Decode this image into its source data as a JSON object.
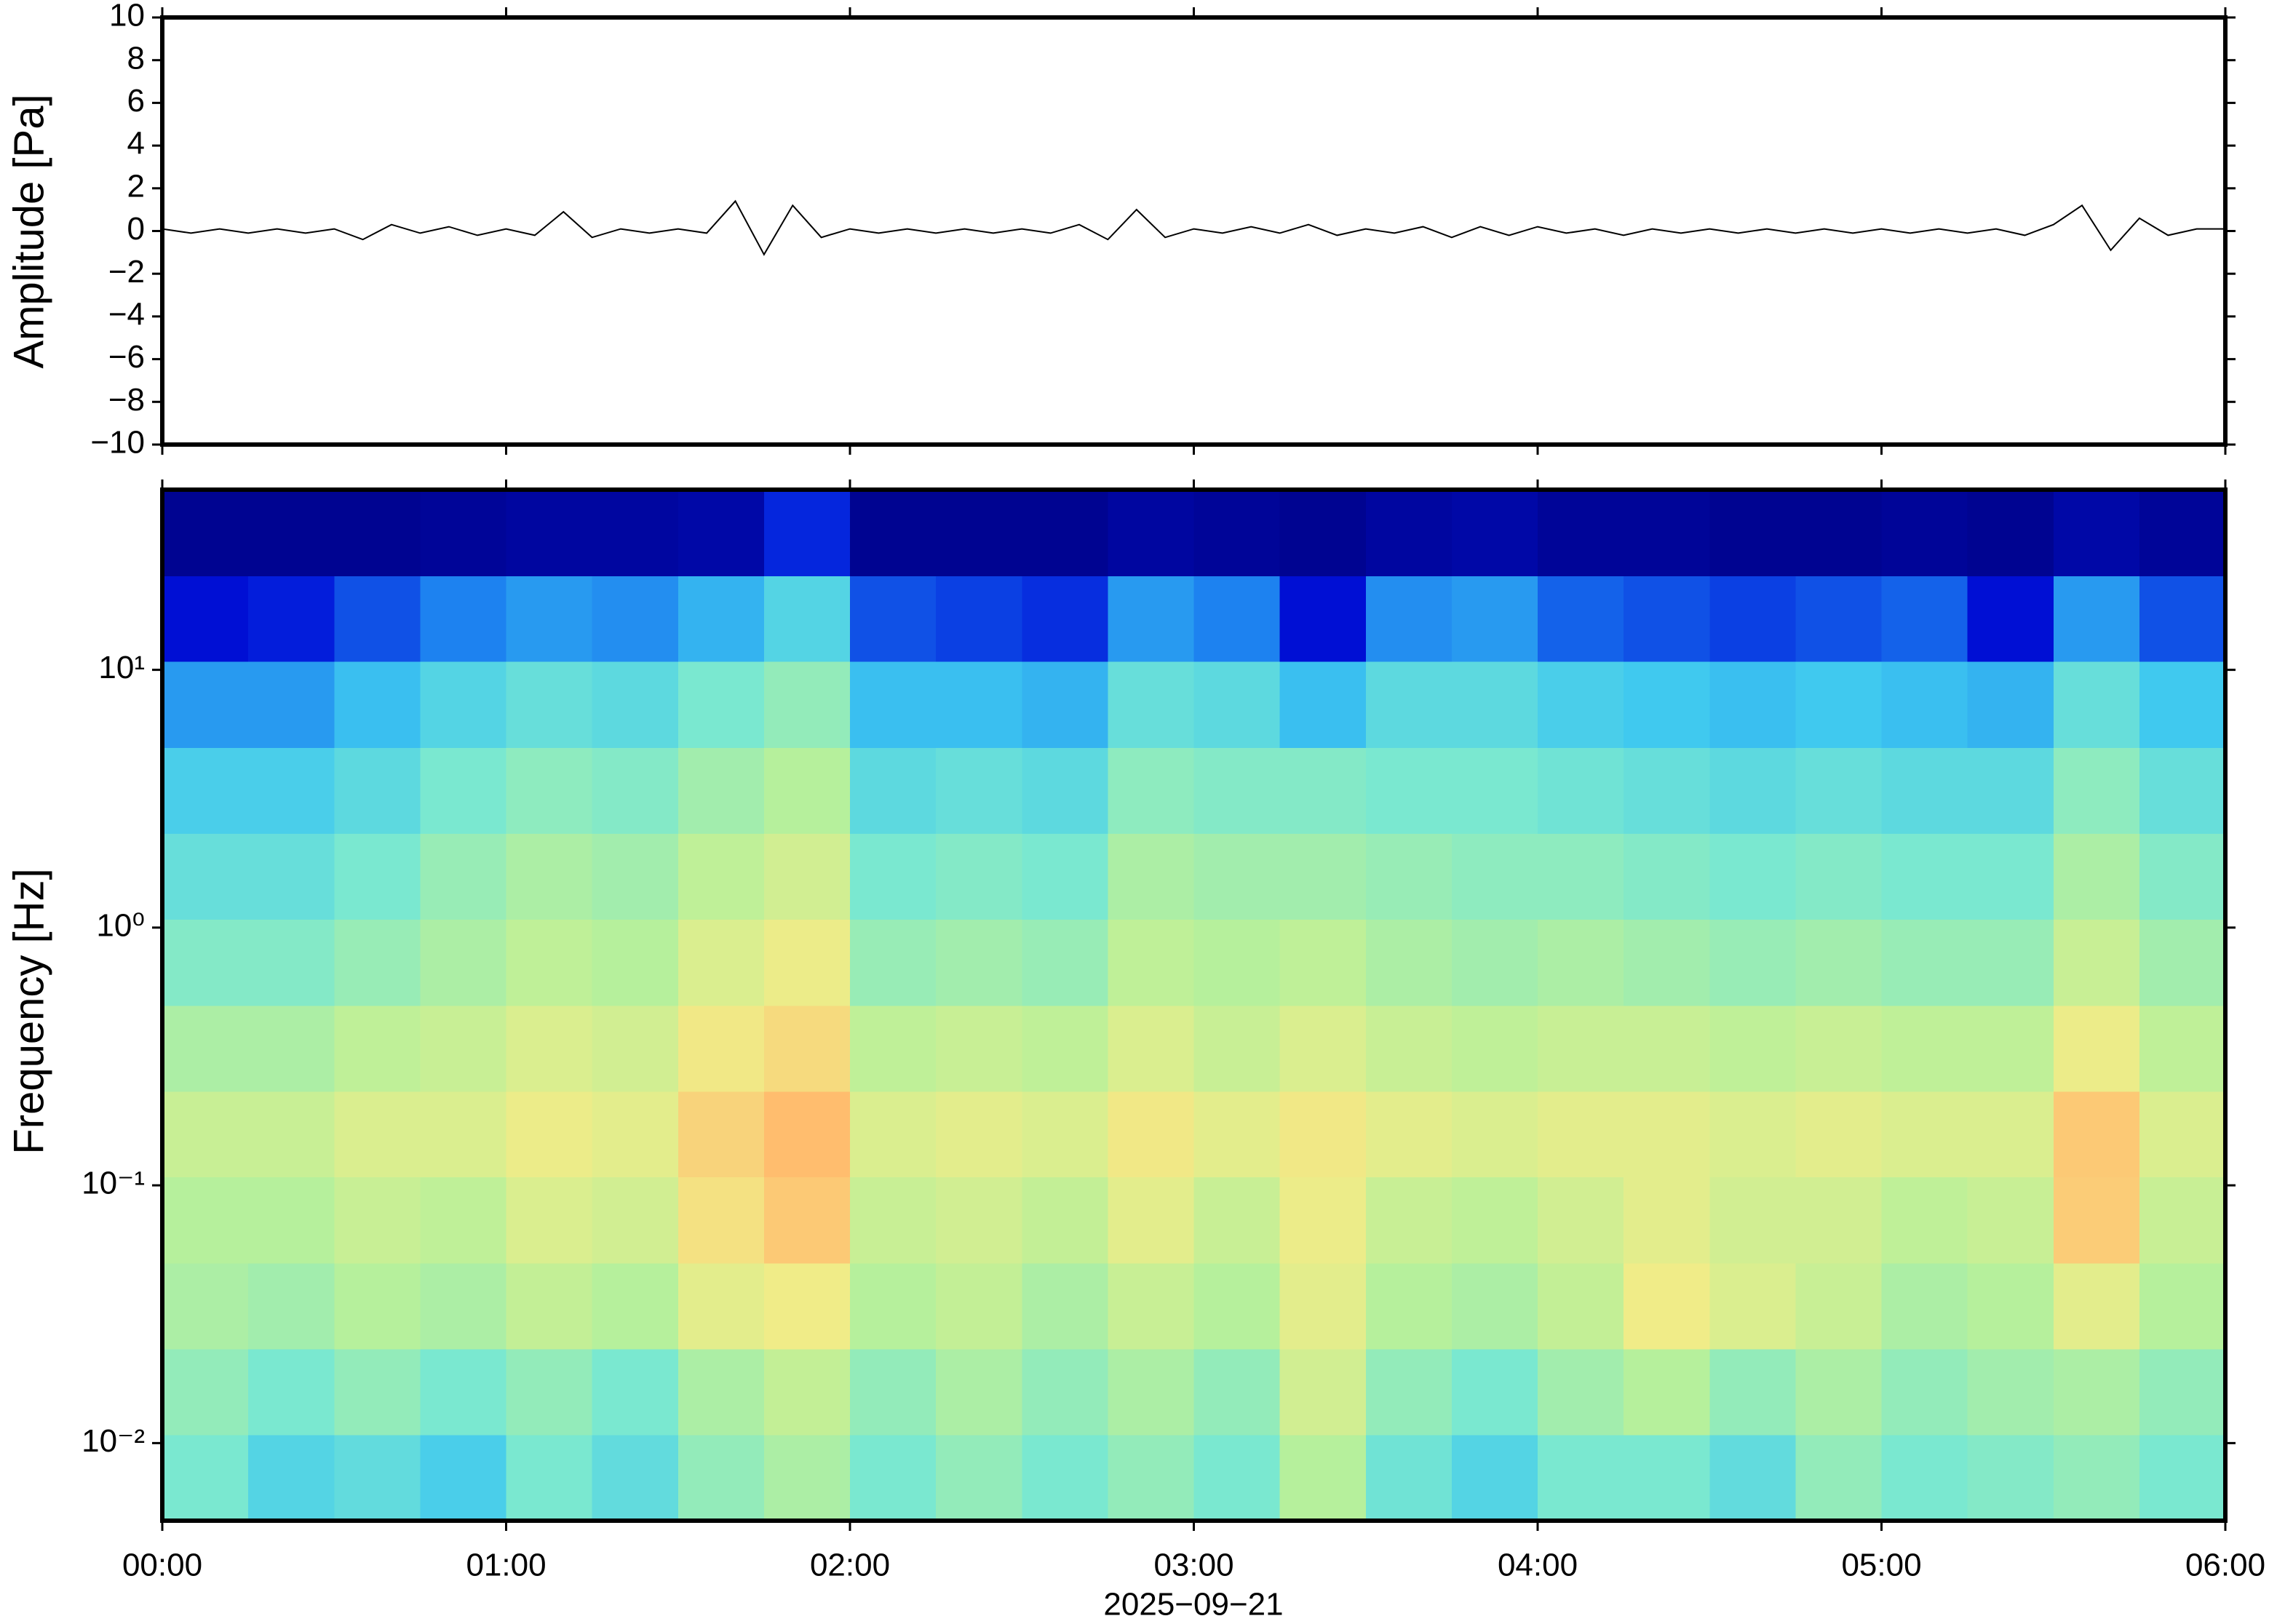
{
  "chart_data": [
    {
      "type": "line",
      "ylabel": "Amplitude [Pa]",
      "color": "#000000",
      "x": [
        "00:00",
        "00:05",
        "00:10",
        "00:15",
        "00:20",
        "00:25",
        "00:30",
        "00:35",
        "00:40",
        "00:45",
        "00:50",
        "00:55",
        "01:00",
        "01:05",
        "01:10",
        "01:15",
        "01:20",
        "01:25",
        "01:30",
        "01:35",
        "01:40",
        "01:45",
        "01:50",
        "01:55",
        "02:00",
        "02:05",
        "02:10",
        "02:15",
        "02:20",
        "02:25",
        "02:30",
        "02:35",
        "02:40",
        "02:45",
        "02:50",
        "02:55",
        "03:00",
        "03:05",
        "03:10",
        "03:15",
        "03:20",
        "03:25",
        "03:30",
        "03:35",
        "03:40",
        "03:45",
        "03:50",
        "03:55",
        "04:00",
        "04:05",
        "04:10",
        "04:15",
        "04:20",
        "04:25",
        "04:30",
        "04:35",
        "04:40",
        "04:45",
        "04:50",
        "04:55",
        "05:00",
        "05:05",
        "05:10",
        "05:15",
        "05:20",
        "05:25",
        "05:30",
        "05:35",
        "05:40",
        "05:45",
        "05:50",
        "05:55",
        "06:00"
      ],
      "values": [
        0.1,
        -0.1,
        0.1,
        -0.1,
        0.1,
        -0.1,
        0.1,
        -0.4,
        0.3,
        -0.1,
        0.2,
        -0.2,
        0.1,
        -0.2,
        0.9,
        -0.3,
        0.1,
        -0.1,
        0.1,
        -0.1,
        1.4,
        -1.1,
        1.2,
        -0.3,
        0.1,
        -0.1,
        0.1,
        -0.1,
        0.1,
        -0.1,
        0.1,
        -0.1,
        0.3,
        -0.4,
        1.0,
        -0.3,
        0.1,
        -0.1,
        0.2,
        -0.1,
        0.3,
        -0.2,
        0.1,
        -0.1,
        0.2,
        -0.3,
        0.2,
        -0.2,
        0.2,
        -0.1,
        0.1,
        -0.2,
        0.1,
        -0.1,
        0.1,
        -0.1,
        0.1,
        -0.1,
        0.1,
        -0.1,
        0.1,
        -0.1,
        0.1,
        -0.1,
        0.1,
        -0.2,
        0.3,
        1.2,
        -0.9,
        0.6,
        -0.2,
        0.1,
        0.1
      ],
      "xlim": [
        "00:00",
        "06:00"
      ],
      "ylim": [
        -10,
        10
      ],
      "yticks": [
        {
          "value": -10,
          "label": "−10"
        },
        {
          "value": -8,
          "label": "−8"
        },
        {
          "value": -6,
          "label": "−6"
        },
        {
          "value": -4,
          "label": "−4"
        },
        {
          "value": -2,
          "label": "−2"
        },
        0,
        2,
        4,
        6,
        8,
        10
      ]
    },
    {
      "type": "heatmap",
      "ylabel": "Frequency [Hz]",
      "xlabel": "2025−09−21",
      "yscale": "log",
      "x_bins": [
        "00:00",
        "00:15",
        "00:30",
        "00:45",
        "01:00",
        "01:15",
        "01:30",
        "01:45",
        "02:00",
        "02:15",
        "02:30",
        "02:45",
        "03:00",
        "03:15",
        "03:30",
        "03:45",
        "04:00",
        "04:15",
        "04:30",
        "04:45",
        "05:00",
        "05:15",
        "05:30",
        "05:45",
        "06:00"
      ],
      "y_bins": [
        0.005,
        0.0108,
        0.0232,
        0.05,
        0.108,
        0.232,
        0.5,
        1.08,
        2.32,
        5,
        10.8,
        23.2,
        50
      ],
      "z": [
        [
          0.5,
          0.42,
          0.45,
          0.4,
          0.5,
          0.45,
          0.55,
          0.6,
          0.5,
          0.55,
          0.5,
          0.55,
          0.5,
          0.62,
          0.48,
          0.42,
          0.5,
          0.5,
          0.45,
          0.55,
          0.5,
          0.52,
          0.55,
          0.5
        ],
        [
          0.55,
          0.5,
          0.55,
          0.5,
          0.55,
          0.5,
          0.6,
          0.65,
          0.55,
          0.6,
          0.55,
          0.6,
          0.55,
          0.68,
          0.55,
          0.5,
          0.58,
          0.62,
          0.55,
          0.6,
          0.55,
          0.58,
          0.6,
          0.55
        ],
        [
          0.6,
          0.58,
          0.62,
          0.6,
          0.65,
          0.62,
          0.72,
          0.75,
          0.62,
          0.65,
          0.6,
          0.66,
          0.62,
          0.72,
          0.62,
          0.6,
          0.65,
          0.75,
          0.7,
          0.66,
          0.6,
          0.62,
          0.72,
          0.62
        ],
        [
          0.62,
          0.62,
          0.66,
          0.64,
          0.7,
          0.68,
          0.78,
          0.85,
          0.66,
          0.68,
          0.65,
          0.72,
          0.66,
          0.74,
          0.66,
          0.64,
          0.68,
          0.72,
          0.68,
          0.68,
          0.64,
          0.66,
          0.84,
          0.66
        ],
        [
          0.66,
          0.66,
          0.7,
          0.7,
          0.74,
          0.72,
          0.82,
          0.88,
          0.7,
          0.72,
          0.7,
          0.76,
          0.72,
          0.76,
          0.72,
          0.7,
          0.72,
          0.72,
          0.7,
          0.72,
          0.7,
          0.7,
          0.85,
          0.7
        ],
        [
          0.6,
          0.6,
          0.64,
          0.66,
          0.7,
          0.68,
          0.76,
          0.8,
          0.64,
          0.66,
          0.64,
          0.7,
          0.66,
          0.7,
          0.66,
          0.64,
          0.66,
          0.66,
          0.64,
          0.66,
          0.64,
          0.64,
          0.74,
          0.64
        ],
        [
          0.52,
          0.52,
          0.56,
          0.6,
          0.64,
          0.62,
          0.7,
          0.74,
          0.56,
          0.58,
          0.56,
          0.64,
          0.62,
          0.64,
          0.6,
          0.58,
          0.6,
          0.58,
          0.56,
          0.58,
          0.56,
          0.56,
          0.66,
          0.58
        ],
        [
          0.46,
          0.46,
          0.5,
          0.56,
          0.6,
          0.58,
          0.64,
          0.68,
          0.5,
          0.52,
          0.5,
          0.6,
          0.58,
          0.58,
          0.56,
          0.54,
          0.54,
          0.52,
          0.5,
          0.52,
          0.5,
          0.5,
          0.6,
          0.52
        ],
        [
          0.4,
          0.4,
          0.44,
          0.5,
          0.54,
          0.52,
          0.58,
          0.62,
          0.44,
          0.46,
          0.44,
          0.54,
          0.52,
          0.52,
          0.5,
          0.5,
          0.48,
          0.46,
          0.44,
          0.46,
          0.44,
          0.44,
          0.54,
          0.46
        ],
        [
          0.3,
          0.3,
          0.36,
          0.42,
          0.46,
          0.44,
          0.5,
          0.55,
          0.36,
          0.36,
          0.34,
          0.46,
          0.44,
          0.36,
          0.44,
          0.44,
          0.4,
          0.38,
          0.36,
          0.38,
          0.36,
          0.34,
          0.46,
          0.38
        ],
        [
          0.12,
          0.14,
          0.2,
          0.26,
          0.3,
          0.28,
          0.34,
          0.42,
          0.2,
          0.18,
          0.16,
          0.3,
          0.26,
          0.12,
          0.28,
          0.3,
          0.22,
          0.2,
          0.18,
          0.2,
          0.22,
          0.12,
          0.3,
          0.2
        ],
        [
          0.03,
          0.03,
          0.03,
          0.04,
          0.05,
          0.05,
          0.06,
          0.15,
          0.03,
          0.03,
          0.03,
          0.05,
          0.04,
          0.03,
          0.05,
          0.06,
          0.04,
          0.04,
          0.03,
          0.03,
          0.04,
          0.03,
          0.06,
          0.04
        ]
      ],
      "zlim": [
        0,
        1
      ],
      "colormap": [
        "#00007a",
        "#0010d8",
        "#1a7cf0",
        "#3ec8f0",
        "#7ae8d0",
        "#b8f09a",
        "#f0ec88",
        "#ffc070",
        "#ff8048"
      ],
      "xlim": [
        "00:00",
        "06:00"
      ],
      "ylim": [
        0.005,
        50
      ],
      "xticks": [
        "00:00",
        "01:00",
        "02:00",
        "03:00",
        "04:00",
        "05:00",
        "06:00"
      ],
      "yticks": [
        {
          "value": 0.01,
          "label": "10⁻²"
        },
        {
          "value": 0.1,
          "label": "10⁻¹"
        },
        {
          "value": 1,
          "label": "10⁰"
        },
        {
          "value": 10,
          "label": "10¹"
        }
      ]
    }
  ]
}
